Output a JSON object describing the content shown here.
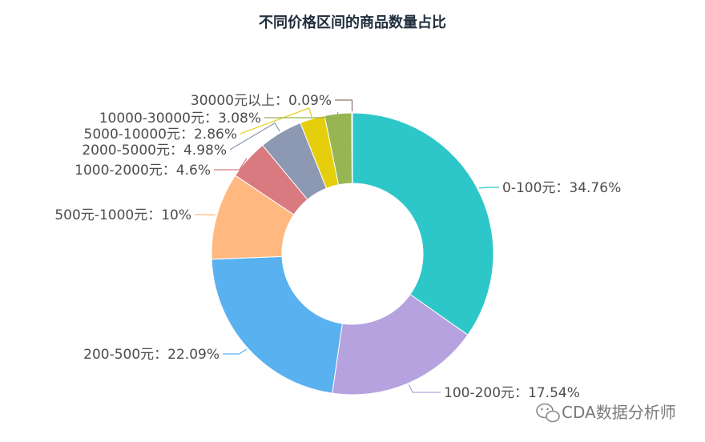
{
  "chart_data": {
    "type": "pie",
    "title": "不同价格区间的商品数量占比",
    "donut": true,
    "slices": [
      {
        "label": "0-100元",
        "value": 34.76,
        "display": "0-100元：34.76%",
        "color": "#2ec7c9"
      },
      {
        "label": "100-200元",
        "value": 17.54,
        "display": "100-200元：17.54%",
        "color": "#b6a2de"
      },
      {
        "label": "200-500元",
        "value": 22.09,
        "display": "200-500元：22.09%",
        "color": "#5ab1ef"
      },
      {
        "label": "500元-1000元",
        "value": 10,
        "display": "500元-1000元：10%",
        "color": "#ffb980"
      },
      {
        "label": "1000-2000元",
        "value": 4.6,
        "display": "1000-2000元：4.6%",
        "color": "#d87a80"
      },
      {
        "label": "2000-5000元",
        "value": 4.98,
        "display": "2000-5000元：4.98%",
        "color": "#8d98b3"
      },
      {
        "label": "5000-10000元",
        "value": 2.86,
        "display": "5000-10000元：2.86%",
        "color": "#e5cf0d"
      },
      {
        "label": "10000-30000元",
        "value": 3.08,
        "display": "10000-30000元：3.08%",
        "color": "#97b552"
      },
      {
        "label": "30000元以上",
        "value": 0.09,
        "display": "30000元以上：0.09%",
        "color": "#95706d"
      }
    ]
  },
  "watermark": {
    "text": "CDA数据分析师",
    "icon": "wechat-icon"
  }
}
